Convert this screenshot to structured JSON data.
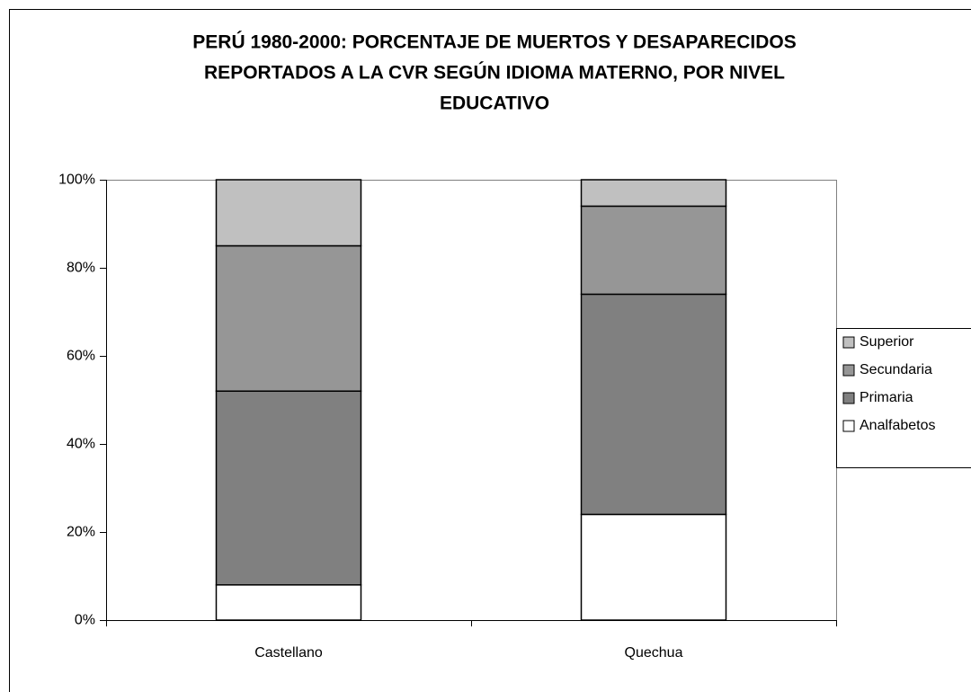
{
  "chart_data": {
    "type": "stacked_bar",
    "title": [
      "PERÚ 1980-2000: PORCENTAJE DE MUERTOS Y DESAPARECIDOS",
      "REPORTADOS A LA CVR SEGÚN IDIOMA MATERNO, POR NIVEL",
      "EDUCATIVO"
    ],
    "categories": [
      "Castellano",
      "Quechua"
    ],
    "series": [
      {
        "name": "Analfabetos",
        "color": "#ffffff",
        "values": [
          8,
          24
        ]
      },
      {
        "name": "Primaria",
        "color": "#808080",
        "values": [
          44,
          50
        ]
      },
      {
        "name": "Secundaria",
        "color": "#969696",
        "values": [
          33,
          20
        ]
      },
      {
        "name": "Superior",
        "color": "#c0c0c0",
        "values": [
          15,
          6
        ]
      }
    ],
    "ylim": [
      0,
      100
    ],
    "yticks": [
      {
        "value": 0,
        "label": "0%"
      },
      {
        "value": 20,
        "label": "20%"
      },
      {
        "value": 40,
        "label": "40%"
      },
      {
        "value": 60,
        "label": "60%"
      },
      {
        "value": 80,
        "label": "80%"
      },
      {
        "value": 100,
        "label": "100%"
      }
    ],
    "grid": false,
    "legend": "right"
  }
}
